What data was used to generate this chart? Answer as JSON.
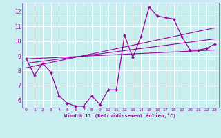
{
  "xlabel": "Windchill (Refroidissement éolien,°C)",
  "bg_color": "#c8eef0",
  "line_color": "#990099",
  "grid_color": "#ffffff",
  "spine_color": "#7777aa",
  "xlim": [
    -0.5,
    23.5
  ],
  "ylim": [
    5.5,
    12.6
  ],
  "xticks": [
    0,
    1,
    2,
    3,
    4,
    5,
    6,
    7,
    8,
    9,
    10,
    11,
    12,
    13,
    14,
    15,
    16,
    17,
    18,
    19,
    20,
    21,
    22,
    23
  ],
  "yticks": [
    6,
    7,
    8,
    9,
    10,
    11,
    12
  ],
  "main_x": [
    0,
    1,
    2,
    3,
    4,
    5,
    6,
    7,
    8,
    9,
    10,
    11,
    12,
    13,
    14,
    15,
    16,
    17,
    18,
    19,
    20,
    21,
    22,
    23
  ],
  "main_y": [
    8.8,
    7.7,
    8.5,
    7.9,
    6.3,
    5.8,
    5.6,
    5.6,
    6.3,
    5.7,
    6.7,
    6.7,
    10.4,
    8.9,
    10.3,
    12.3,
    11.7,
    11.6,
    11.5,
    10.3,
    9.4,
    9.4,
    9.5,
    9.8
  ],
  "trend1_x": [
    0,
    23
  ],
  "trend1_y": [
    8.8,
    9.4
  ],
  "trend2_x": [
    0,
    23
  ],
  "trend2_y": [
    8.2,
    10.9
  ],
  "trend3_x": [
    0,
    23
  ],
  "trend3_y": [
    8.5,
    10.15
  ]
}
